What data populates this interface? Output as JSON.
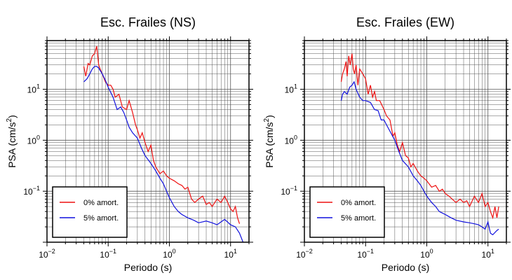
{
  "chart_data": [
    {
      "type": "line",
      "title": "Esc. Frailes (NS)",
      "xlabel": "Periodo (s)",
      "ylabel_base": "PSA (cm/s",
      "ylabel_exp": "2",
      "ylabel_close": ")",
      "xscale": "log",
      "yscale": "log",
      "xlim": [
        0.01,
        20
      ],
      "ylim": [
        0.01,
        90
      ],
      "grid": true,
      "legend_position": "bottom-left",
      "x_ticks": [
        {
          "base": "10",
          "exp": "−2"
        },
        {
          "base": "10",
          "exp": "−1"
        },
        {
          "base": "10",
          "exp": "0"
        },
        {
          "base": "10",
          "exp": "1"
        }
      ],
      "y_ticks": [
        {
          "base": "10",
          "exp": "−1"
        },
        {
          "base": "10",
          "exp": "0"
        },
        {
          "base": "10",
          "exp": "1"
        }
      ],
      "series": [
        {
          "name": "0% amort.",
          "color": "#ee1111",
          "x": [
            0.04,
            0.043,
            0.047,
            0.05,
            0.055,
            0.06,
            0.065,
            0.07,
            0.075,
            0.08,
            0.09,
            0.1,
            0.11,
            0.12,
            0.13,
            0.15,
            0.17,
            0.2,
            0.22,
            0.25,
            0.28,
            0.3,
            0.33,
            0.36,
            0.4,
            0.45,
            0.5,
            0.55,
            0.6,
            0.7,
            0.8,
            0.9,
            1.0,
            1.2,
            1.4,
            1.6,
            1.8,
            2.0,
            2.3,
            2.6,
            3.0,
            3.5,
            4.0,
            4.5,
            5.0,
            6.0,
            7.0,
            8.0,
            9.0,
            10.0,
            11.0,
            12.0,
            13.0,
            14.0
          ],
          "y": [
            28,
            18,
            32,
            30,
            45,
            50,
            70,
            30,
            24,
            20,
            14,
            12,
            12,
            10,
            7,
            8,
            4.5,
            4,
            6,
            3.5,
            2,
            1.6,
            1.1,
            1.4,
            0.9,
            0.6,
            0.8,
            0.4,
            0.3,
            0.22,
            0.25,
            0.2,
            0.18,
            0.16,
            0.14,
            0.13,
            0.11,
            0.12,
            0.07,
            0.06,
            0.07,
            0.08,
            0.055,
            0.06,
            0.05,
            0.07,
            0.06,
            0.08,
            0.06,
            0.045,
            0.04,
            0.05,
            0.03,
            0.023
          ]
        },
        {
          "name": "5% amort.",
          "color": "#1111dd",
          "x": [
            0.04,
            0.045,
            0.05,
            0.055,
            0.06,
            0.065,
            0.07,
            0.08,
            0.09,
            0.1,
            0.12,
            0.14,
            0.16,
            0.18,
            0.2,
            0.22,
            0.25,
            0.3,
            0.35,
            0.4,
            0.5,
            0.6,
            0.7,
            0.8,
            0.9,
            1.0,
            1.2,
            1.4,
            1.6,
            2.0,
            2.5,
            3.0,
            4.0,
            5.0,
            6.0,
            7.0,
            8.0,
            10.0,
            12.0,
            14.0,
            16.0
          ],
          "y": [
            14,
            16,
            20,
            25,
            28,
            28,
            26,
            20,
            15,
            11,
            7,
            4,
            4.5,
            3.5,
            2.5,
            1.8,
            1.4,
            1.1,
            0.7,
            0.5,
            0.35,
            0.25,
            0.18,
            0.14,
            0.1,
            0.075,
            0.05,
            0.04,
            0.035,
            0.03,
            0.027,
            0.024,
            0.026,
            0.024,
            0.022,
            0.025,
            0.028,
            0.022,
            0.02,
            0.015,
            0.01
          ]
        }
      ]
    },
    {
      "type": "line",
      "title": "Esc. Frailes (EW)",
      "xlabel": "Periodo (s)",
      "ylabel_base": "PSA (cm/s",
      "ylabel_exp": "2",
      "ylabel_close": ")",
      "xscale": "log",
      "yscale": "log",
      "xlim": [
        0.01,
        20
      ],
      "ylim": [
        0.01,
        90
      ],
      "grid": true,
      "legend_position": "bottom-left",
      "x_ticks": [
        {
          "base": "10",
          "exp": "−2"
        },
        {
          "base": "10",
          "exp": "−1"
        },
        {
          "base": "10",
          "exp": "0"
        },
        {
          "base": "10",
          "exp": "1"
        }
      ],
      "y_ticks": [
        {
          "base": "10",
          "exp": "−1"
        },
        {
          "base": "10",
          "exp": "0"
        },
        {
          "base": "10",
          "exp": "1"
        }
      ],
      "series": [
        {
          "name": "0% amort.",
          "color": "#ee1111",
          "x": [
            0.04,
            0.042,
            0.045,
            0.048,
            0.05,
            0.053,
            0.056,
            0.06,
            0.063,
            0.066,
            0.07,
            0.075,
            0.08,
            0.09,
            0.1,
            0.11,
            0.12,
            0.13,
            0.14,
            0.15,
            0.17,
            0.2,
            0.22,
            0.25,
            0.28,
            0.3,
            0.33,
            0.36,
            0.4,
            0.45,
            0.5,
            0.55,
            0.6,
            0.7,
            0.8,
            0.9,
            1.0,
            1.2,
            1.4,
            1.6,
            1.8,
            2.0,
            2.3,
            2.6,
            3.0,
            3.5,
            4.0,
            4.5,
            5.0,
            6.0,
            7.0,
            8.0,
            9.0,
            10.0,
            11.0,
            12.0,
            13.0,
            14.0,
            15.0
          ],
          "y": [
            14,
            20,
            25,
            35,
            18,
            45,
            30,
            50,
            25,
            20,
            30,
            12,
            25,
            20,
            16,
            8,
            12,
            7,
            9,
            6,
            6,
            4,
            3,
            2.5,
            1.2,
            1.4,
            0.8,
            0.6,
            0.9,
            0.5,
            0.45,
            0.3,
            0.35,
            0.25,
            0.2,
            0.18,
            0.16,
            0.12,
            0.13,
            0.1,
            0.11,
            0.09,
            0.08,
            0.07,
            0.06,
            0.07,
            0.06,
            0.065,
            0.05,
            0.08,
            0.06,
            0.09,
            0.05,
            0.06,
            0.04,
            0.03,
            0.05,
            0.03,
            0.05
          ]
        },
        {
          "name": "5% amort.",
          "color": "#1111dd",
          "x": [
            0.04,
            0.042,
            0.045,
            0.05,
            0.055,
            0.06,
            0.065,
            0.07,
            0.08,
            0.09,
            0.1,
            0.12,
            0.14,
            0.16,
            0.18,
            0.2,
            0.22,
            0.25,
            0.3,
            0.35,
            0.4,
            0.5,
            0.6,
            0.7,
            0.8,
            0.9,
            1.0,
            1.2,
            1.4,
            1.6,
            2.0,
            2.5,
            3.0,
            4.0,
            5.0,
            6.0,
            7.0,
            8.0,
            9.0,
            10.0,
            11.0,
            12.0,
            14.0,
            15.0
          ],
          "y": [
            6,
            8,
            9,
            8,
            11,
            12,
            14,
            10,
            7,
            6,
            6,
            5.5,
            4,
            3.8,
            2.5,
            2.5,
            2,
            1.5,
            1,
            0.6,
            0.4,
            0.3,
            0.2,
            0.16,
            0.13,
            0.1,
            0.08,
            0.06,
            0.05,
            0.04,
            0.035,
            0.03,
            0.027,
            0.025,
            0.024,
            0.023,
            0.022,
            0.02,
            0.018,
            0.025,
            0.015,
            0.014,
            0.017,
            0.018
          ]
        }
      ]
    }
  ]
}
